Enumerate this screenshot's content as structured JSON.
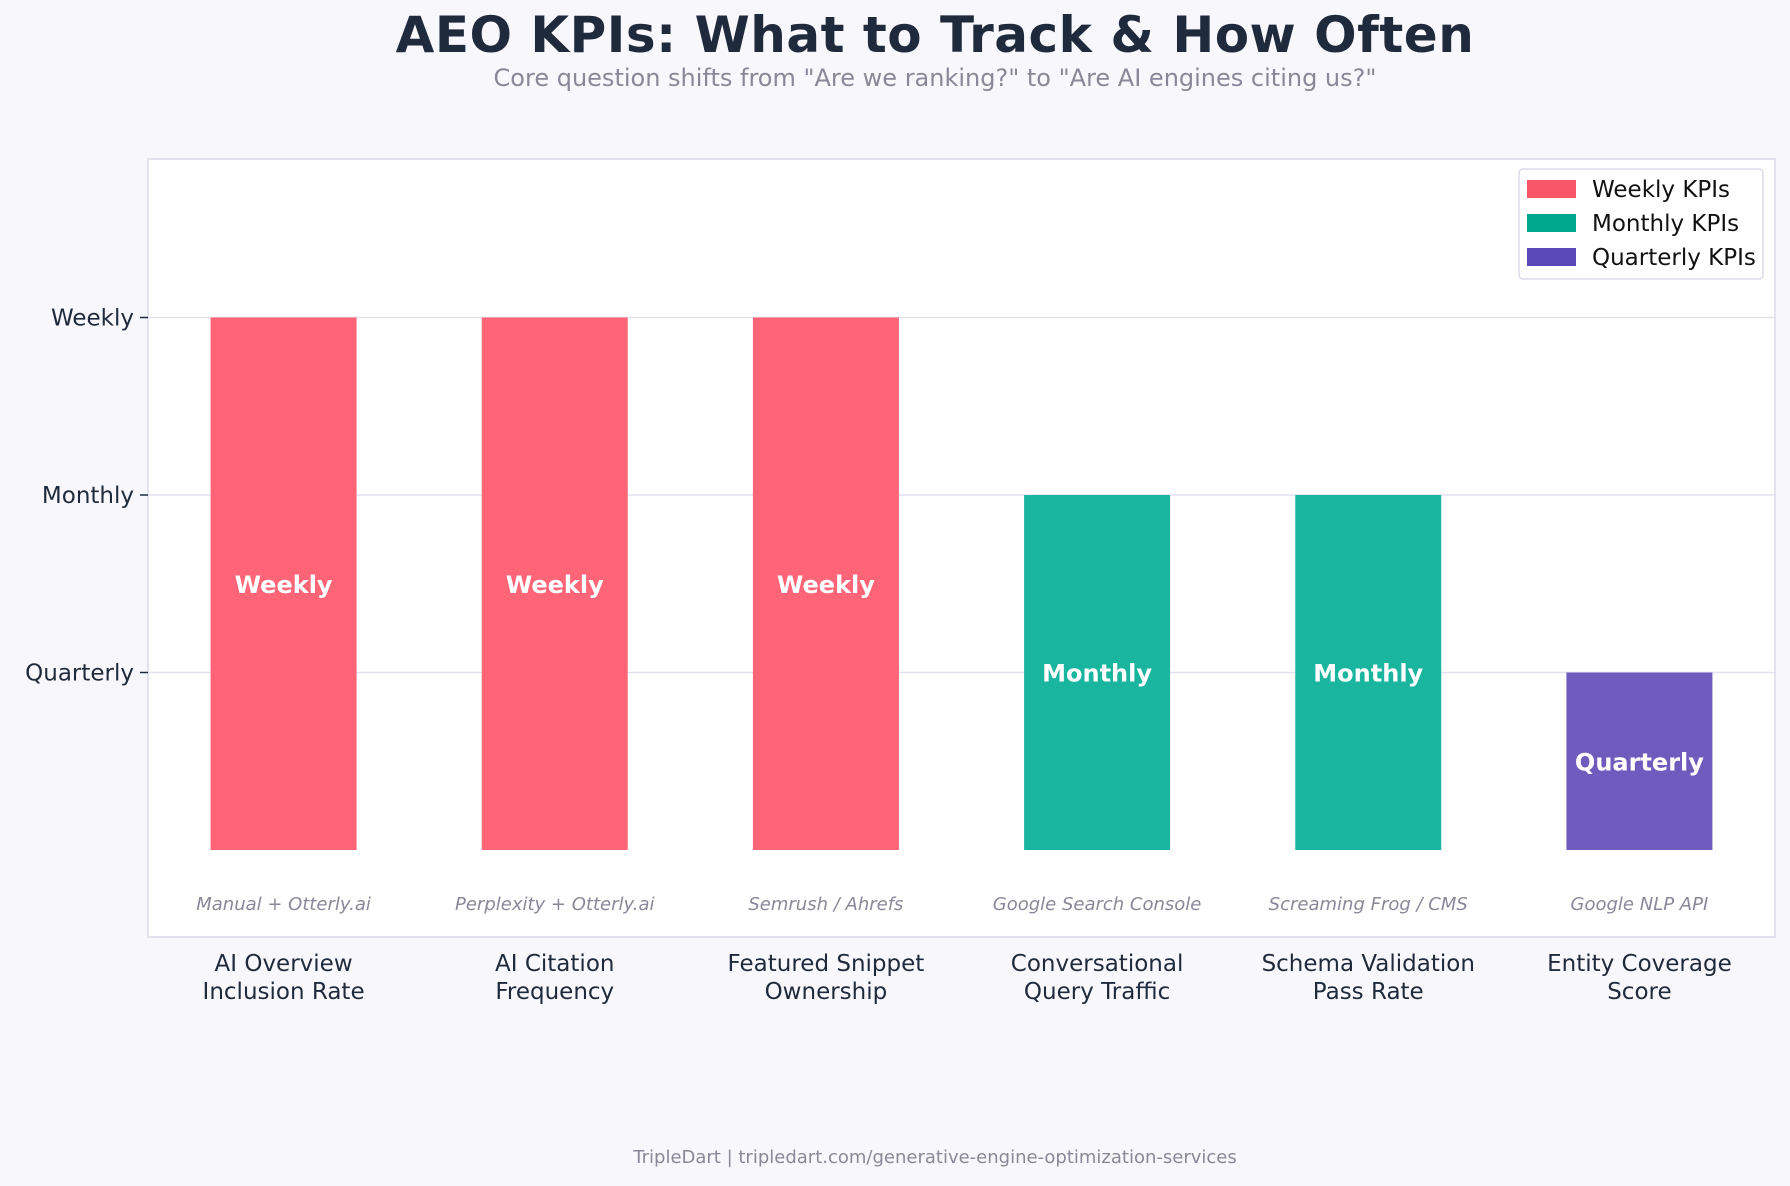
{
  "title": "AEO KPIs: What to Track & How Often",
  "subtitle": "Core question shifts from \"Are we ranking?\" to \"Are AI engines citing us?\"",
  "footer": "TripleDart  |  tripledart.com/generative-engine-optimization-services",
  "colors": {
    "weekly": "#ff6577",
    "monthly": "#1ab59f",
    "quarterly": "#6f5bbd",
    "legend_weekly": "#f9566a",
    "legend_monthly": "#00a98e",
    "legend_quarterly": "#5b48b7"
  },
  "chart_data": {
    "type": "bar",
    "title": "AEO KPIs: What to Track & How Often",
    "subtitle": "Core question shifts from \"Are we ranking?\" to \"Are AI engines citing us?\"",
    "categories": [
      [
        "AI Overview",
        "Inclusion Rate"
      ],
      [
        "AI Citation",
        "Frequency"
      ],
      [
        "Featured Snippet",
        "Ownership"
      ],
      [
        "Conversational",
        "Query Traffic"
      ],
      [
        "Schema Validation",
        "Pass Rate"
      ],
      [
        "Entity Coverage",
        "Score"
      ]
    ],
    "values": [
      3,
      3,
      3,
      2,
      2,
      1
    ],
    "bar_labels": [
      "Weekly",
      "Weekly",
      "Weekly",
      "Monthly",
      "Monthly",
      "Quarterly"
    ],
    "groups": [
      "weekly",
      "weekly",
      "weekly",
      "monthly",
      "monthly",
      "quarterly"
    ],
    "tools": [
      "Manual + Otterly.ai",
      "Perplexity + Otterly.ai",
      "Semrush / Ahrefs",
      "Google Search Console",
      "Screaming Frog / CMS",
      "Google NLP API"
    ],
    "y_ticks": [
      {
        "value": 1,
        "label": "Quarterly"
      },
      {
        "value": 2,
        "label": "Monthly"
      },
      {
        "value": 3,
        "label": "Weekly"
      }
    ],
    "ylim": [
      0,
      3.9
    ],
    "grid": true,
    "legend_position": "top-right",
    "legend": [
      {
        "label": "Weekly KPIs",
        "group": "weekly"
      },
      {
        "label": "Monthly KPIs",
        "group": "monthly"
      },
      {
        "label": "Quarterly KPIs",
        "group": "quarterly"
      }
    ]
  }
}
